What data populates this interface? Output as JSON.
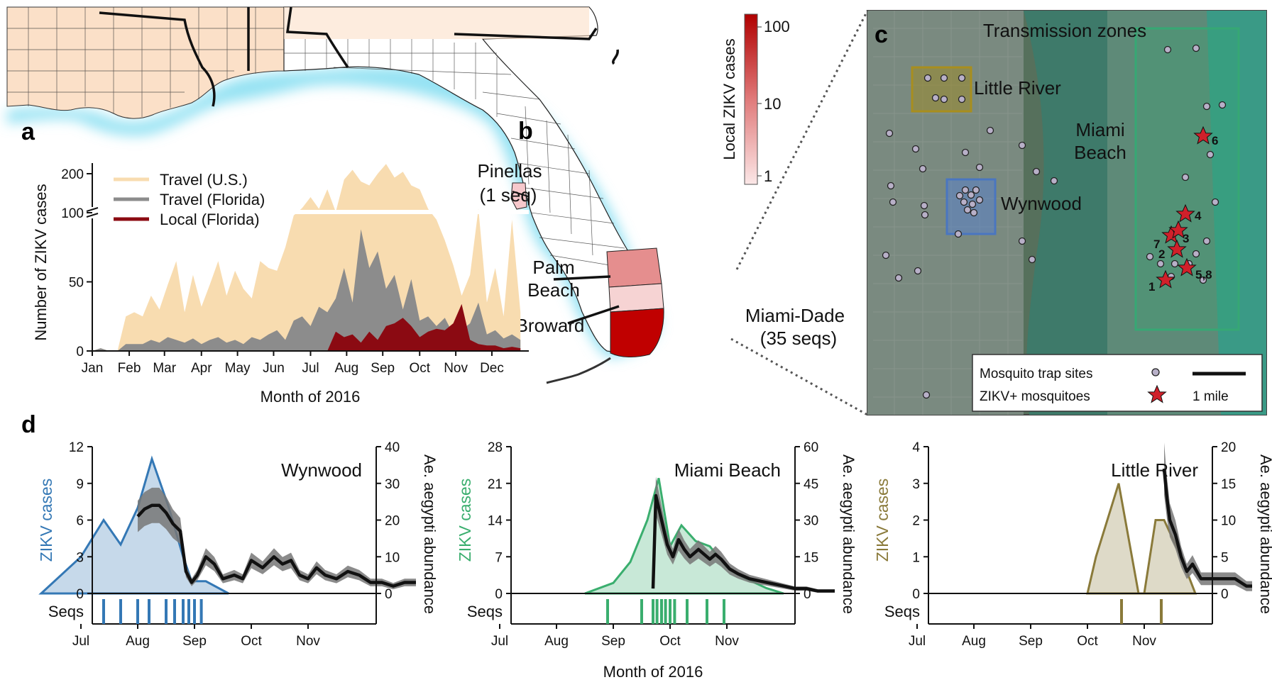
{
  "figure": {
    "panel_labels": {
      "a": "a",
      "b": "b",
      "c": "c",
      "d": "d"
    },
    "map_b": {
      "colorbar_title": "Local ZIKV cases",
      "colorbar_ticks": [
        "100",
        "10",
        "1"
      ],
      "colors": {
        "high": "#c00000",
        "mid": "#e58e8e",
        "low": "#f6d3d3"
      },
      "labels": {
        "pinellas": "Pinellas",
        "pinellas_seq": "(1 seq)",
        "palm1": "Palm",
        "palm2": "Beach",
        "broward": "Broward",
        "miami": "Miami-Dade",
        "miami_seq": "(35 seqs)"
      }
    },
    "map_c": {
      "title": "Transmission zones",
      "zones": {
        "little_river": "Little River",
        "wynwood": "Wynwood",
        "miami_beach_1": "Miami",
        "miami_beach_2": "Beach"
      },
      "star_labels": [
        "1",
        "2",
        "3",
        "4",
        "5,8",
        "6",
        "7"
      ],
      "legend": {
        "trap": "Mosquito trap sites",
        "zikv": "ZIKV+ mosquitoes",
        "scale": "1 mile"
      },
      "colors": {
        "little_river": "#8a7a2e",
        "wynwood": "#4a76c0",
        "miami_beach": "#36a874",
        "star": "#d0202a"
      }
    }
  },
  "chart_data": [
    {
      "type": "area",
      "panel": "a",
      "xlabel": "Month of 2016",
      "ylabel": "Number of ZIKV cases",
      "x_ticks": [
        "Jan",
        "Feb",
        "Mar",
        "Apr",
        "May",
        "Jun",
        "Jul",
        "Aug",
        "Sep",
        "Oct",
        "Nov",
        "Dec"
      ],
      "y_ticks": [
        "0",
        "50",
        "100",
        "200"
      ],
      "y_break": true,
      "x_unit": "week of 2016",
      "legend_position": "top-left",
      "series": [
        {
          "name": "Travel (U.S.)",
          "color": "#f8dcb0",
          "x": [
            1,
            2,
            3,
            4,
            5,
            6,
            7,
            8,
            9,
            10,
            11,
            12,
            13,
            14,
            15,
            16,
            17,
            18,
            19,
            20,
            21,
            22,
            23,
            24,
            25,
            26,
            27,
            28,
            29,
            30,
            31,
            32,
            33,
            34,
            35,
            36,
            37,
            38,
            39,
            40,
            41,
            42,
            43,
            44,
            45,
            46,
            47,
            48,
            49,
            50,
            51,
            52
          ],
          "y": [
            0,
            2,
            0,
            0,
            25,
            28,
            25,
            40,
            30,
            48,
            65,
            28,
            55,
            32,
            48,
            65,
            40,
            58,
            45,
            38,
            65,
            60,
            58,
            75,
            98,
            112,
            140,
            110,
            160,
            102,
            185,
            210,
            180,
            170,
            200,
            225,
            190,
            205,
            170,
            160,
            110,
            95,
            80,
            62,
            40,
            55,
            110,
            35,
            60,
            25,
            95,
            28
          ]
        },
        {
          "name": "Travel (Florida)",
          "color": "#8c8c8c",
          "x": [
            1,
            2,
            3,
            4,
            5,
            6,
            7,
            8,
            9,
            10,
            11,
            12,
            13,
            14,
            15,
            16,
            17,
            18,
            19,
            20,
            21,
            22,
            23,
            24,
            25,
            26,
            27,
            28,
            29,
            30,
            31,
            32,
            33,
            34,
            35,
            36,
            37,
            38,
            39,
            40,
            41,
            42,
            43,
            44,
            45,
            46,
            47,
            48,
            49,
            50,
            51,
            52
          ],
          "y": [
            0,
            2,
            0,
            0,
            5,
            5,
            5,
            8,
            6,
            10,
            8,
            6,
            9,
            5,
            8,
            10,
            6,
            8,
            5,
            10,
            8,
            12,
            15,
            8,
            22,
            25,
            18,
            32,
            28,
            38,
            60,
            35,
            88,
            60,
            72,
            45,
            55,
            30,
            52,
            22,
            25,
            18,
            24,
            12,
            15,
            20,
            35,
            12,
            15,
            9,
            12,
            8
          ]
        },
        {
          "name": "Local (Florida)",
          "color": "#8b0a12",
          "x": [
            29,
            30,
            31,
            32,
            33,
            34,
            35,
            36,
            37,
            38,
            39,
            40,
            41,
            42,
            43,
            44,
            45,
            46,
            47,
            48,
            49,
            50,
            51,
            52
          ],
          "y": [
            0,
            14,
            10,
            12,
            6,
            14,
            8,
            18,
            20,
            24,
            18,
            10,
            14,
            16,
            15,
            20,
            34,
            8,
            5,
            4,
            4,
            2,
            3,
            2
          ]
        }
      ]
    },
    {
      "type": "area",
      "panel": "d",
      "title": "Wynwood",
      "xlabel": "",
      "ylabel": "ZIKV cases",
      "ylabel_right": "Ae. aegypti abundance",
      "x_ticks": [
        "Jul",
        "Aug",
        "Sep",
        "Oct",
        "Nov"
      ],
      "y_ticks": [
        "0",
        "3",
        "6",
        "9",
        "12"
      ],
      "y_ticks_right": [
        "0",
        "10",
        "20",
        "30",
        "40"
      ],
      "ylim": [
        0,
        12
      ],
      "ylim_right": [
        0,
        40
      ],
      "color": "#3478b5",
      "seqs_label": "Seqs",
      "cases": {
        "x": [
          -1.7,
          -1.0,
          -0.6,
          -0.3,
          0.0,
          0.25,
          0.55,
          0.8,
          0.95,
          1.2,
          1.6
        ],
        "y": [
          0,
          3,
          6,
          4,
          7,
          11,
          7,
          3,
          1,
          1,
          0
        ]
      },
      "abundance": {
        "x": [
          0.0,
          0.12,
          0.25,
          0.38,
          0.5,
          0.62,
          0.75,
          0.85,
          0.95,
          1.05,
          1.2,
          1.35,
          1.5,
          1.7,
          1.85,
          2.0,
          2.2,
          2.4,
          2.55,
          2.7,
          2.85,
          3.0,
          3.15,
          3.3,
          3.5,
          3.7,
          3.9,
          4.1,
          4.3,
          4.5,
          4.7,
          4.9
        ],
        "y": [
          21,
          23,
          24,
          24,
          22,
          19,
          17,
          6,
          3,
          5,
          10,
          8,
          4,
          5,
          4,
          9,
          7,
          10,
          8,
          9,
          5,
          4,
          7,
          5,
          4,
          6,
          5,
          3,
          3,
          2,
          3,
          3
        ]
      },
      "seqs_x": [
        -0.6,
        -0.3,
        0.0,
        0.2,
        0.5,
        0.65,
        0.8,
        0.9,
        1.0,
        1.12
      ]
    },
    {
      "type": "area",
      "panel": "d",
      "title": "Miami Beach",
      "xlabel": "Month of 2016",
      "ylabel": "ZIKV cases",
      "ylabel_right": "Ae. aegypti abundance",
      "x_ticks": [
        "Jul",
        "Aug",
        "Sep",
        "Oct",
        "Nov"
      ],
      "y_ticks": [
        "0",
        "7",
        "14",
        "21",
        "28"
      ],
      "y_ticks_right": [
        "0",
        "15",
        "30",
        "45",
        "60"
      ],
      "ylim": [
        0,
        28
      ],
      "ylim_right": [
        0,
        60
      ],
      "color": "#3aae6e",
      "seqs_label": "Seqs",
      "cases": {
        "x": [
          0.5,
          1.0,
          1.3,
          1.6,
          1.8,
          2.0,
          2.2,
          2.45,
          2.7,
          3.0,
          3.3,
          3.7,
          4.0
        ],
        "y": [
          0,
          2,
          6,
          14,
          22,
          9,
          13,
          10,
          9,
          5,
          3,
          1,
          0
        ]
      },
      "abundance": {
        "x": [
          1.7,
          1.75,
          1.85,
          1.95,
          2.05,
          2.15,
          2.25,
          2.35,
          2.5,
          2.6,
          2.7,
          2.8,
          2.9,
          3.05,
          3.2,
          3.4,
          3.6,
          3.8,
          4.0,
          4.2,
          4.4,
          4.6,
          4.8,
          4.9
        ],
        "y": [
          2,
          40,
          30,
          20,
          15,
          22,
          18,
          15,
          18,
          16,
          14,
          16,
          14,
          10,
          8,
          6,
          5,
          4,
          3,
          2,
          2,
          1,
          1,
          1
        ]
      },
      "seqs_x": [
        0.9,
        1.5,
        1.7,
        1.77,
        1.85,
        1.92,
        2.0,
        2.08,
        2.3,
        2.65,
        2.95
      ]
    },
    {
      "type": "area",
      "panel": "d",
      "title": "Little River",
      "xlabel": "",
      "ylabel": "ZIKV cases",
      "ylabel_right": "Ae. aegypti abundance",
      "x_ticks": [
        "Jul",
        "Aug",
        "Sep",
        "Oct",
        "Nov"
      ],
      "y_ticks": [
        "0",
        "1",
        "2",
        "3",
        "4"
      ],
      "y_ticks_right": [
        "0",
        "5",
        "10",
        "15",
        "20"
      ],
      "ylim": [
        0,
        4
      ],
      "ylim_right": [
        0,
        20
      ],
      "color": "#8a7a3a",
      "seqs_label": "Seqs",
      "cases": {
        "x": [
          2.0,
          2.15,
          2.55,
          2.9,
          3.0,
          3.2,
          3.35,
          3.65,
          3.9
        ],
        "y": [
          0,
          1,
          3,
          0,
          0,
          2,
          2,
          1,
          0
        ]
      },
      "abundance": {
        "x": [
          3.35,
          3.4,
          3.45,
          3.55,
          3.65,
          3.75,
          3.85,
          4.0,
          4.2,
          4.4,
          4.6,
          4.8,
          4.9
        ],
        "y": [
          17,
          13,
          10,
          8,
          5,
          3,
          4,
          2,
          2,
          2,
          2,
          1,
          1
        ]
      },
      "seqs_x": [
        2.6,
        3.3
      ]
    }
  ]
}
